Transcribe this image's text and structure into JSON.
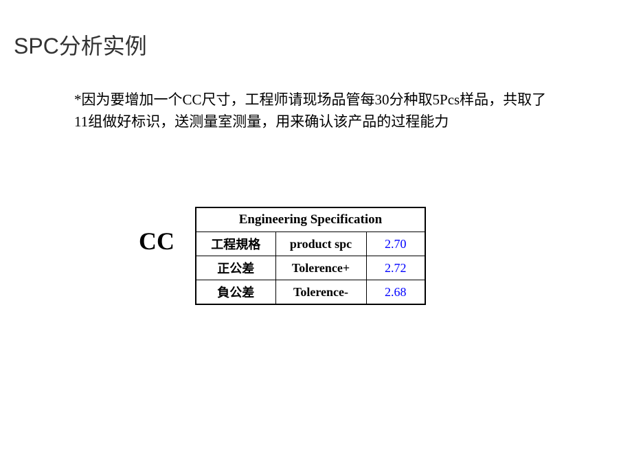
{
  "title": "SPC分析实例",
  "description": "*因为要增加一个CC尺寸，工程师请现场品管每30分种取5Pcs样品，共取了11组做好标识，送测量室测量，用来确认该产品的过程能力",
  "ccLabel": "CC",
  "table": {
    "header": "Engineering Specification",
    "rows": [
      {
        "cn": "工程規格",
        "en": "product spc",
        "val": "2.70"
      },
      {
        "cn": "正公差",
        "en": "Tolerence+",
        "val": "2.72"
      },
      {
        "cn": "負公差",
        "en": "Tolerence-",
        "val": "2.68"
      }
    ],
    "colors": {
      "valueColor": "#0000ff",
      "borderColor": "#000000",
      "background": "#ffffff"
    },
    "fontSizes": {
      "header": 19,
      "cell": 18
    }
  }
}
